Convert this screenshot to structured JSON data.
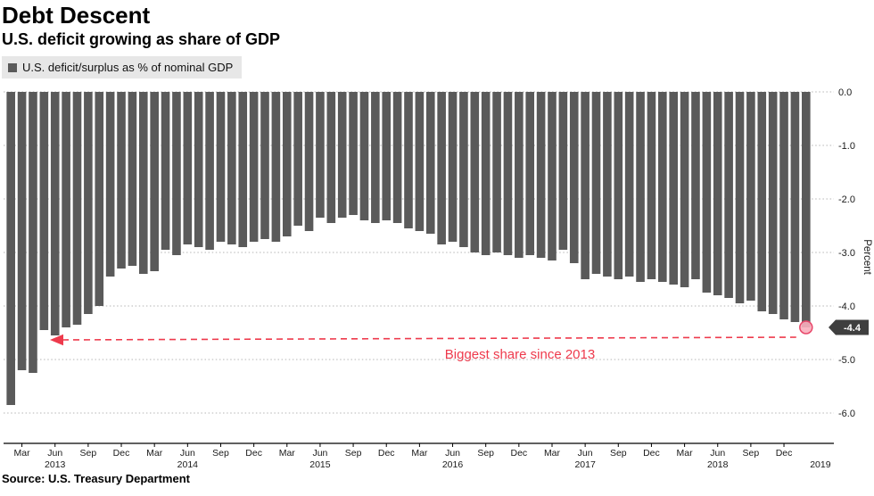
{
  "header": {
    "title": "Debt Descent",
    "subtitle": "U.S. deficit growing as share of GDP"
  },
  "legend": {
    "label": "U.S. deficit/surplus as % of nominal GDP"
  },
  "source": {
    "text": "Source: U.S. Treasury Department"
  },
  "chart_data": {
    "type": "bar",
    "title": "Debt Descent",
    "subtitle": "U.S. deficit growing as share of GDP",
    "series_label": "U.S. deficit/surplus as % of nominal GDP",
    "ylabel": "Percent",
    "ylim": [
      -6.6,
      0
    ],
    "grid": true,
    "legend_position": "top-left",
    "y_ticks": [
      {
        "v": 0,
        "label": "0.0"
      },
      {
        "v": -1,
        "label": "-1.0"
      },
      {
        "v": -2,
        "label": "-2.0"
      },
      {
        "v": -3,
        "label": "-3.0"
      },
      {
        "v": -4,
        "label": "-4.0"
      },
      {
        "v": -5,
        "label": "-5.0"
      },
      {
        "v": -6,
        "label": "-6.0"
      }
    ],
    "x_tick_months": [
      "Mar",
      "Jun",
      "Sep",
      "Dec"
    ],
    "months": [
      "Feb 2013",
      "Mar 2013",
      "Apr 2013",
      "May 2013",
      "Jun 2013",
      "Jul 2013",
      "Aug 2013",
      "Sep 2013",
      "Oct 2013",
      "Nov 2013",
      "Dec 2013",
      "Jan 2014",
      "Feb 2014",
      "Mar 2014",
      "Apr 2014",
      "May 2014",
      "Jun 2014",
      "Jul 2014",
      "Aug 2014",
      "Sep 2014",
      "Oct 2014",
      "Nov 2014",
      "Dec 2014",
      "Jan 2015",
      "Feb 2015",
      "Mar 2015",
      "Apr 2015",
      "May 2015",
      "Jun 2015",
      "Jul 2015",
      "Aug 2015",
      "Sep 2015",
      "Oct 2015",
      "Nov 2015",
      "Dec 2015",
      "Jan 2016",
      "Feb 2016",
      "Mar 2016",
      "Apr 2016",
      "May 2016",
      "Jun 2016",
      "Jul 2016",
      "Aug 2016",
      "Sep 2016",
      "Oct 2016",
      "Nov 2016",
      "Dec 2016",
      "Jan 2017",
      "Feb 2017",
      "Mar 2017",
      "Apr 2017",
      "May 2017",
      "Jun 2017",
      "Jul 2017",
      "Aug 2017",
      "Sep 2017",
      "Oct 2017",
      "Nov 2017",
      "Dec 2017",
      "Jan 2018",
      "Feb 2018",
      "Mar 2018",
      "Apr 2018",
      "May 2018",
      "Jun 2018",
      "Jul 2018",
      "Aug 2018",
      "Sep 2018",
      "Oct 2018",
      "Nov 2018",
      "Dec 2018",
      "Jan 2019",
      "Feb 2019"
    ],
    "values": [
      -5.85,
      -5.2,
      -5.25,
      -4.45,
      -4.55,
      -4.4,
      -4.35,
      -4.15,
      -4.0,
      -3.45,
      -3.3,
      -3.25,
      -3.4,
      -3.35,
      -2.95,
      -3.05,
      -2.85,
      -2.9,
      -2.95,
      -2.8,
      -2.85,
      -2.9,
      -2.8,
      -2.75,
      -2.8,
      -2.7,
      -2.5,
      -2.6,
      -2.35,
      -2.45,
      -2.35,
      -2.3,
      -2.4,
      -2.45,
      -2.4,
      -2.45,
      -2.55,
      -2.6,
      -2.65,
      -2.85,
      -2.8,
      -2.9,
      -3.0,
      -3.05,
      -3.0,
      -3.05,
      -3.1,
      -3.05,
      -3.1,
      -3.15,
      -2.95,
      -3.2,
      -3.5,
      -3.4,
      -3.45,
      -3.5,
      -3.45,
      -3.55,
      -3.5,
      -3.55,
      -3.6,
      -3.65,
      -3.5,
      -3.75,
      -3.8,
      -3.85,
      -3.95,
      -3.9,
      -4.1,
      -4.15,
      -4.25,
      -4.3,
      -4.4
    ],
    "annotation": {
      "text": "Biggest share since 2013"
    },
    "highlight": {
      "month": "Feb 2019",
      "value": -4.4,
      "label": "-4.4"
    },
    "colors": {
      "bar": "#5a5a5a",
      "grid": "#b5b5b5",
      "axis": "#000000",
      "tick_text": "#1a1a1a",
      "annotation": "#ee3a4c",
      "highlight_fill": "#f8aebc",
      "highlight_stroke": "#e8476a",
      "tag_bg": "#3f3f3f",
      "tag_text": "#ffffff",
      "legend_bg": "#e7e7e7"
    }
  }
}
